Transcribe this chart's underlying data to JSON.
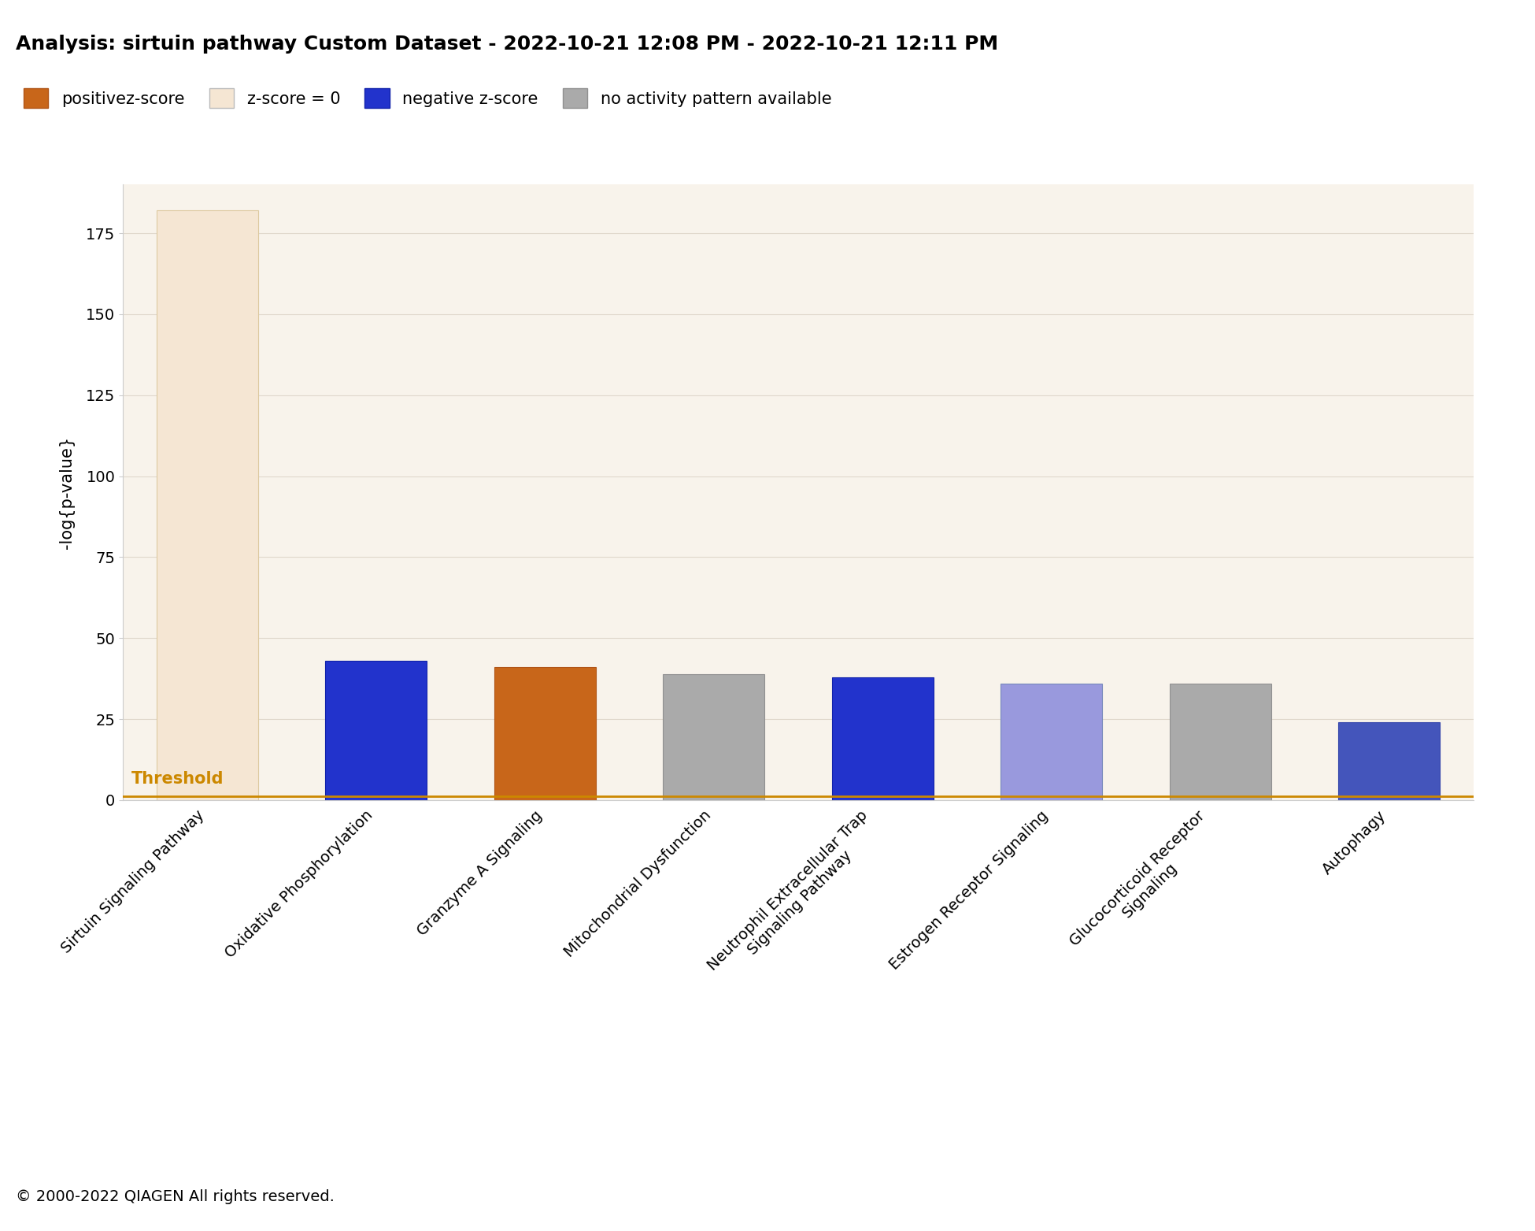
{
  "title": "Analysis: sirtuin pathway Custom Dataset - 2022-10-21 12:08 PM - 2022-10-21 12:11 PM",
  "ylabel": "-log{p-value}",
  "categories": [
    "Sirtuin Signaling Pathway",
    "Oxidative Phosphorylation",
    "Granzyme A Signaling",
    "Mitochondrial Dysfunction",
    "Neutrophil Extracellular Trap\nSignaling Pathway",
    "Estrogen Receptor Signaling",
    "Glucocorticoid Receptor\nSignaling",
    "Autophagy"
  ],
  "values": [
    182,
    43,
    41,
    39,
    38,
    36,
    36,
    24
  ],
  "bar_colors": [
    "#f5e6d3",
    "#2233cc",
    "#c8661a",
    "#aaaaaa",
    "#2233cc",
    "#9999dd",
    "#aaaaaa",
    "#4455bb"
  ],
  "bar_edge_colors": [
    "#ddc9a0",
    "#1122aa",
    "#b05518",
    "#909090",
    "#1122aa",
    "#7788bb",
    "#909090",
    "#3344aa"
  ],
  "threshold_value": 1.3,
  "threshold_label": "Threshold",
  "threshold_color": "#cc8800",
  "ylim": [
    0,
    190
  ],
  "yticks": [
    0,
    25,
    50,
    75,
    100,
    125,
    150,
    175
  ],
  "background_color": "#ffffff",
  "plot_bg_color": "#f8f3eb",
  "grid_color": "#e0d8cc",
  "legend_items": [
    {
      "label": "positivez-score",
      "color": "#c8661a",
      "edge": "#b05518"
    },
    {
      "label": "z-score = 0",
      "color": "#f5e6d3",
      "edge": "#bbbbbb"
    },
    {
      "label": "negative z-score",
      "color": "#2233cc",
      "edge": "#1122aa"
    },
    {
      "label": "no activity pattern available",
      "color": "#aaaaaa",
      "edge": "#909090"
    }
  ],
  "copyright": "© 2000-2022 QIAGEN All rights reserved.",
  "title_fontsize": 18,
  "label_fontsize": 15,
  "tick_fontsize": 14,
  "legend_fontsize": 15,
  "copyright_fontsize": 14
}
